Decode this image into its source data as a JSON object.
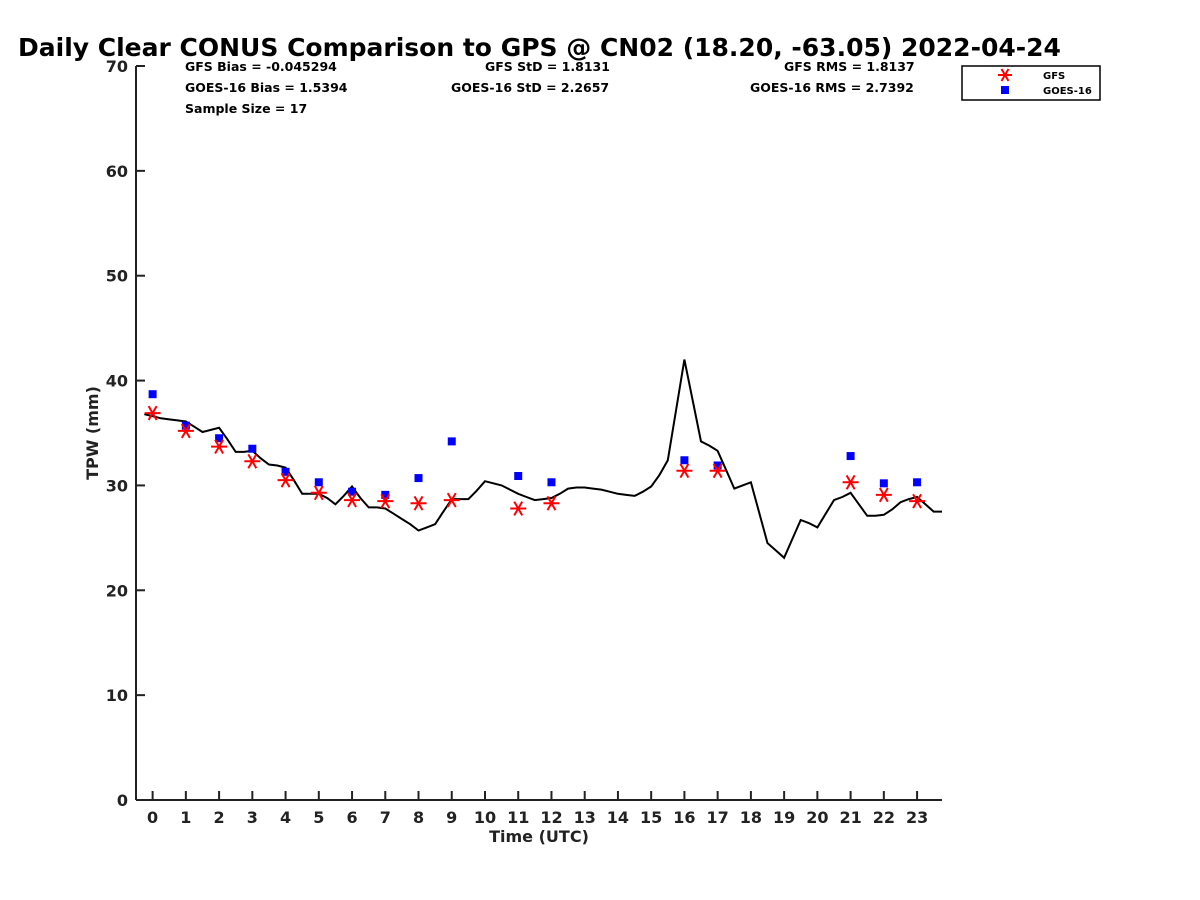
{
  "chart_data": {
    "type": "scatter",
    "title": "Daily Clear CONUS Comparison to GPS @ CN02 (18.20, -63.05) 2022-04-24",
    "xlabel": "Time (UTC)",
    "ylabel": "TPW (mm)",
    "xlim": [
      -0.5,
      23.75
    ],
    "ylim": [
      0,
      70
    ],
    "x_ticks": [
      "0",
      "1",
      "2",
      "3",
      "4",
      "5",
      "6",
      "7",
      "8",
      "9",
      "10",
      "11",
      "12",
      "13",
      "14",
      "15",
      "16",
      "17",
      "18",
      "19",
      "20",
      "21",
      "22",
      "23"
    ],
    "y_ticks": [
      "0",
      "10",
      "20",
      "30",
      "40",
      "50",
      "60",
      "70"
    ],
    "grid": false,
    "legend_position": "top-right outside",
    "stats": {
      "gfs_bias": "GFS Bias = -0.045294",
      "goes_bias": "GOES-16 Bias = 1.5394",
      "sample_size": "Sample Size = 17",
      "gfs_std": "GFS StD = 1.8131",
      "goes_std": "GOES-16 StD = 2.2657",
      "gfs_rms": "GFS RMS = 1.8137",
      "goes_rms": "GOES-16 RMS = 2.7392"
    },
    "series": [
      {
        "name": "GFS",
        "marker": "asterisk",
        "color": "#ff0000",
        "x": [
          0,
          1,
          2,
          3,
          4,
          5,
          6,
          7,
          8,
          9,
          11,
          12,
          16,
          17,
          21,
          22,
          23
        ],
        "values": [
          36.9,
          35.2,
          33.7,
          32.3,
          30.5,
          29.3,
          28.6,
          28.5,
          28.3,
          28.6,
          27.8,
          28.3,
          31.4,
          31.4,
          30.3,
          29.1,
          28.5
        ]
      },
      {
        "name": "GOES-16",
        "marker": "square",
        "color": "#0000ff",
        "x": [
          0,
          1,
          2,
          3,
          4,
          5,
          6,
          7,
          8,
          9,
          11,
          12,
          16,
          17,
          21,
          22,
          23
        ],
        "values": [
          38.7,
          35.7,
          34.5,
          33.5,
          31.3,
          30.3,
          29.4,
          29.1,
          30.7,
          34.2,
          30.9,
          30.3,
          32.4,
          31.9,
          32.8,
          30.2,
          30.3
        ]
      },
      {
        "marker": "line",
        "color": "#000000",
        "x": [
          -0.25,
          0,
          0.25,
          0.5,
          0.75,
          1,
          1.25,
          1.5,
          1.75,
          2,
          2.25,
          2.5,
          2.75,
          3,
          3.25,
          3.5,
          3.75,
          4,
          4.25,
          4.5,
          4.75,
          5,
          5.25,
          5.5,
          5.75,
          6,
          6.25,
          6.5,
          6.75,
          7,
          7.25,
          7.5,
          7.75,
          8,
          8.25,
          8.5,
          8.75,
          9,
          9.25,
          9.5,
          9.75,
          10,
          10.25,
          10.5,
          10.75,
          11,
          11.25,
          11.5,
          11.75,
          12,
          12.25,
          12.5,
          12.75,
          13,
          13.25,
          13.5,
          13.75,
          14,
          14.25,
          14.5,
          14.75,
          15,
          15.25,
          15.5,
          15.75,
          16,
          16.25,
          16.5,
          16.75,
          17,
          17.25,
          17.5,
          17.75,
          18,
          18.25,
          18.5,
          18.75,
          19,
          19.25,
          19.5,
          19.75,
          20,
          20.25,
          20.5,
          20.75,
          21,
          21.25,
          21.5,
          21.75,
          22,
          22.25,
          22.5,
          22.75,
          23,
          23.25,
          23.5,
          23.75
        ],
        "values": [
          36.8,
          36.6,
          36.4,
          36.3,
          36.2,
          36.1,
          35.6,
          35.1,
          35.3,
          35.5,
          34.4,
          33.2,
          33.2,
          33.3,
          32.6,
          32.0,
          31.9,
          31.7,
          30.5,
          29.2,
          29.2,
          29.2,
          28.8,
          28.2,
          29.0,
          29.9,
          28.8,
          27.9,
          27.9,
          27.8,
          27.3,
          26.8,
          26.3,
          25.7,
          26.0,
          26.3,
          27.5,
          28.7,
          28.7,
          28.7,
          29.5,
          30.4,
          30.2,
          30.0,
          29.6,
          29.2,
          28.9,
          28.6,
          28.7,
          28.8,
          29.2,
          29.7,
          29.8,
          29.8,
          29.7,
          29.6,
          29.4,
          29.2,
          29.1,
          29.0,
          29.4,
          29.9,
          31.0,
          32.4,
          37.2,
          42.0,
          38.1,
          34.2,
          33.8,
          33.3,
          31.5,
          29.7,
          30.0,
          30.3,
          27.4,
          24.5,
          23.8,
          23.1,
          24.9,
          26.7,
          26.4,
          26.0,
          27.3,
          28.6,
          28.9,
          29.3,
          28.2,
          27.1,
          27.1,
          27.2,
          27.7,
          28.4,
          28.7,
          28.9,
          28.2,
          27.5,
          27.5
        ]
      }
    ]
  }
}
